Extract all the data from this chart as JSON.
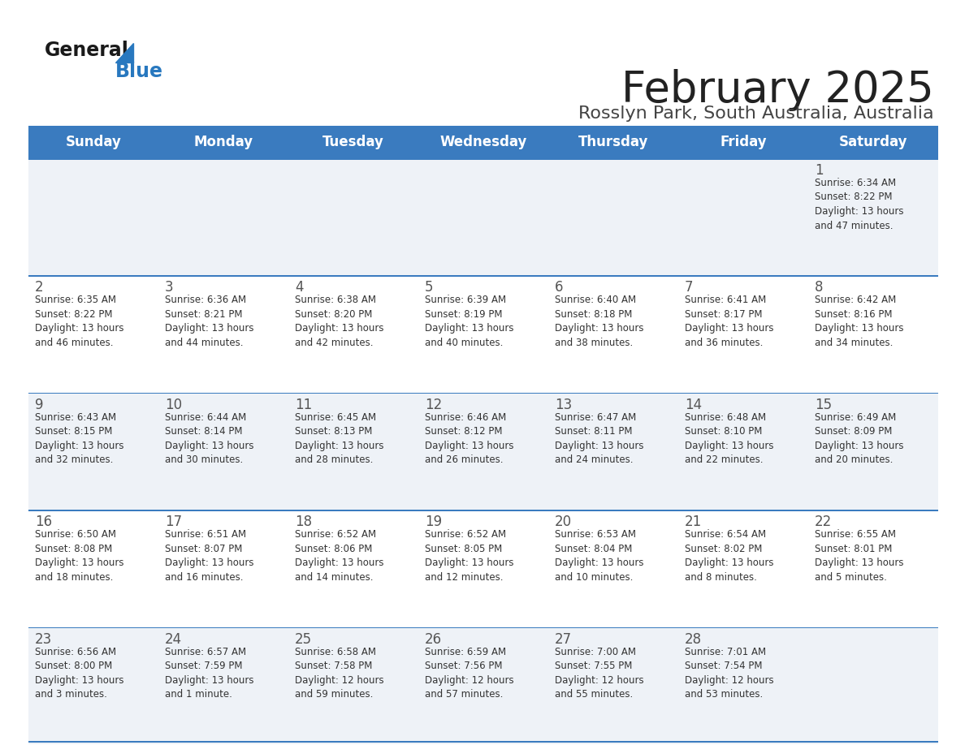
{
  "title": "February 2025",
  "subtitle": "Rosslyn Park, South Australia, Australia",
  "days_of_week": [
    "Sunday",
    "Monday",
    "Tuesday",
    "Wednesday",
    "Thursday",
    "Friday",
    "Saturday"
  ],
  "header_bg": "#3a7bbf",
  "header_text": "#ffffff",
  "row_bg_light": "#eef2f7",
  "row_bg_white": "#ffffff",
  "divider_color": "#3a7bbf",
  "day_number_color": "#555555",
  "cell_text_color": "#333333",
  "title_color": "#222222",
  "subtitle_color": "#444444",
  "logo_general_color": "#1a1a1a",
  "logo_blue_color": "#2878bf",
  "calendar": [
    [
      {
        "day": null,
        "info": null
      },
      {
        "day": null,
        "info": null
      },
      {
        "day": null,
        "info": null
      },
      {
        "day": null,
        "info": null
      },
      {
        "day": null,
        "info": null
      },
      {
        "day": null,
        "info": null
      },
      {
        "day": 1,
        "info": "Sunrise: 6:34 AM\nSunset: 8:22 PM\nDaylight: 13 hours\nand 47 minutes."
      }
    ],
    [
      {
        "day": 2,
        "info": "Sunrise: 6:35 AM\nSunset: 8:22 PM\nDaylight: 13 hours\nand 46 minutes."
      },
      {
        "day": 3,
        "info": "Sunrise: 6:36 AM\nSunset: 8:21 PM\nDaylight: 13 hours\nand 44 minutes."
      },
      {
        "day": 4,
        "info": "Sunrise: 6:38 AM\nSunset: 8:20 PM\nDaylight: 13 hours\nand 42 minutes."
      },
      {
        "day": 5,
        "info": "Sunrise: 6:39 AM\nSunset: 8:19 PM\nDaylight: 13 hours\nand 40 minutes."
      },
      {
        "day": 6,
        "info": "Sunrise: 6:40 AM\nSunset: 8:18 PM\nDaylight: 13 hours\nand 38 minutes."
      },
      {
        "day": 7,
        "info": "Sunrise: 6:41 AM\nSunset: 8:17 PM\nDaylight: 13 hours\nand 36 minutes."
      },
      {
        "day": 8,
        "info": "Sunrise: 6:42 AM\nSunset: 8:16 PM\nDaylight: 13 hours\nand 34 minutes."
      }
    ],
    [
      {
        "day": 9,
        "info": "Sunrise: 6:43 AM\nSunset: 8:15 PM\nDaylight: 13 hours\nand 32 minutes."
      },
      {
        "day": 10,
        "info": "Sunrise: 6:44 AM\nSunset: 8:14 PM\nDaylight: 13 hours\nand 30 minutes."
      },
      {
        "day": 11,
        "info": "Sunrise: 6:45 AM\nSunset: 8:13 PM\nDaylight: 13 hours\nand 28 minutes."
      },
      {
        "day": 12,
        "info": "Sunrise: 6:46 AM\nSunset: 8:12 PM\nDaylight: 13 hours\nand 26 minutes."
      },
      {
        "day": 13,
        "info": "Sunrise: 6:47 AM\nSunset: 8:11 PM\nDaylight: 13 hours\nand 24 minutes."
      },
      {
        "day": 14,
        "info": "Sunrise: 6:48 AM\nSunset: 8:10 PM\nDaylight: 13 hours\nand 22 minutes."
      },
      {
        "day": 15,
        "info": "Sunrise: 6:49 AM\nSunset: 8:09 PM\nDaylight: 13 hours\nand 20 minutes."
      }
    ],
    [
      {
        "day": 16,
        "info": "Sunrise: 6:50 AM\nSunset: 8:08 PM\nDaylight: 13 hours\nand 18 minutes."
      },
      {
        "day": 17,
        "info": "Sunrise: 6:51 AM\nSunset: 8:07 PM\nDaylight: 13 hours\nand 16 minutes."
      },
      {
        "day": 18,
        "info": "Sunrise: 6:52 AM\nSunset: 8:06 PM\nDaylight: 13 hours\nand 14 minutes."
      },
      {
        "day": 19,
        "info": "Sunrise: 6:52 AM\nSunset: 8:05 PM\nDaylight: 13 hours\nand 12 minutes."
      },
      {
        "day": 20,
        "info": "Sunrise: 6:53 AM\nSunset: 8:04 PM\nDaylight: 13 hours\nand 10 minutes."
      },
      {
        "day": 21,
        "info": "Sunrise: 6:54 AM\nSunset: 8:02 PM\nDaylight: 13 hours\nand 8 minutes."
      },
      {
        "day": 22,
        "info": "Sunrise: 6:55 AM\nSunset: 8:01 PM\nDaylight: 13 hours\nand 5 minutes."
      }
    ],
    [
      {
        "day": 23,
        "info": "Sunrise: 6:56 AM\nSunset: 8:00 PM\nDaylight: 13 hours\nand 3 minutes."
      },
      {
        "day": 24,
        "info": "Sunrise: 6:57 AM\nSunset: 7:59 PM\nDaylight: 13 hours\nand 1 minute."
      },
      {
        "day": 25,
        "info": "Sunrise: 6:58 AM\nSunset: 7:58 PM\nDaylight: 12 hours\nand 59 minutes."
      },
      {
        "day": 26,
        "info": "Sunrise: 6:59 AM\nSunset: 7:56 PM\nDaylight: 12 hours\nand 57 minutes."
      },
      {
        "day": 27,
        "info": "Sunrise: 7:00 AM\nSunset: 7:55 PM\nDaylight: 12 hours\nand 55 minutes."
      },
      {
        "day": 28,
        "info": "Sunrise: 7:01 AM\nSunset: 7:54 PM\nDaylight: 12 hours\nand 53 minutes."
      },
      {
        "day": null,
        "info": null
      }
    ]
  ]
}
